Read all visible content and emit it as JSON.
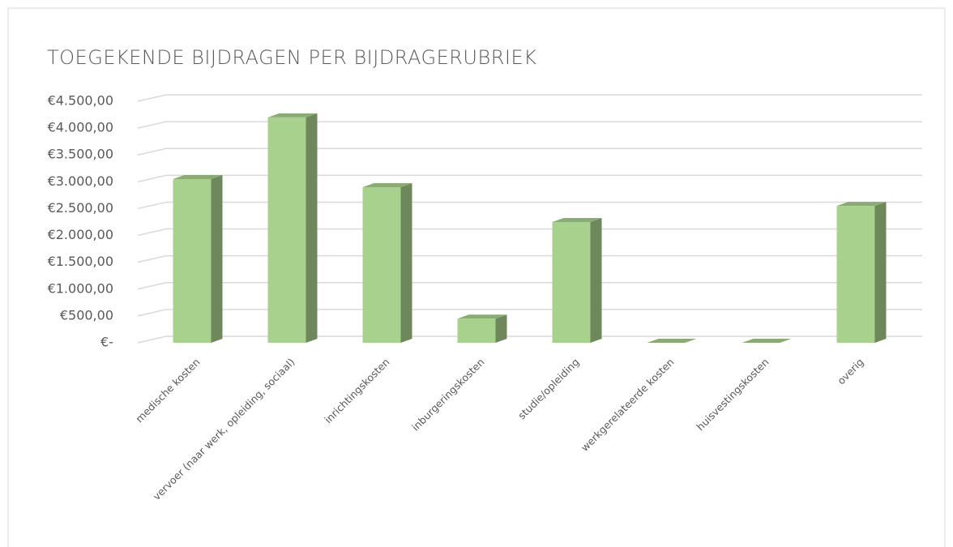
{
  "chart_data": {
    "type": "bar",
    "title": "TOEGEKENDE BIJDRAGEN PER BIJDRAGERUBRIEK",
    "categories": [
      "medische kosten",
      "vervoer (naar werk, opleiding, sociaal)",
      "inrichtingskosten",
      "inburgeringskosten",
      "studie/opleiding",
      "werkgerelateerde kosten",
      "huisvestingskosten",
      "overig"
    ],
    "values": [
      3050,
      4200,
      2900,
      450,
      2250,
      0,
      0,
      2550
    ],
    "color": "#a9d18e",
    "ylim": [
      0,
      4500
    ],
    "yticks": [
      {
        "value": 0,
        "label": "€-"
      },
      {
        "value": 500,
        "label": "€500,00"
      },
      {
        "value": 1000,
        "label": "€1.000,00"
      },
      {
        "value": 1500,
        "label": "€1.500,00"
      },
      {
        "value": 2000,
        "label": "€2.000,00"
      },
      {
        "value": 2500,
        "label": "€2.500,00"
      },
      {
        "value": 3000,
        "label": "€3.000,00"
      },
      {
        "value": 3500,
        "label": "€3.500,00"
      },
      {
        "value": 4000,
        "label": "€4.000,00"
      },
      {
        "value": 4500,
        "label": "€4.500,00"
      }
    ],
    "grid": true
  }
}
